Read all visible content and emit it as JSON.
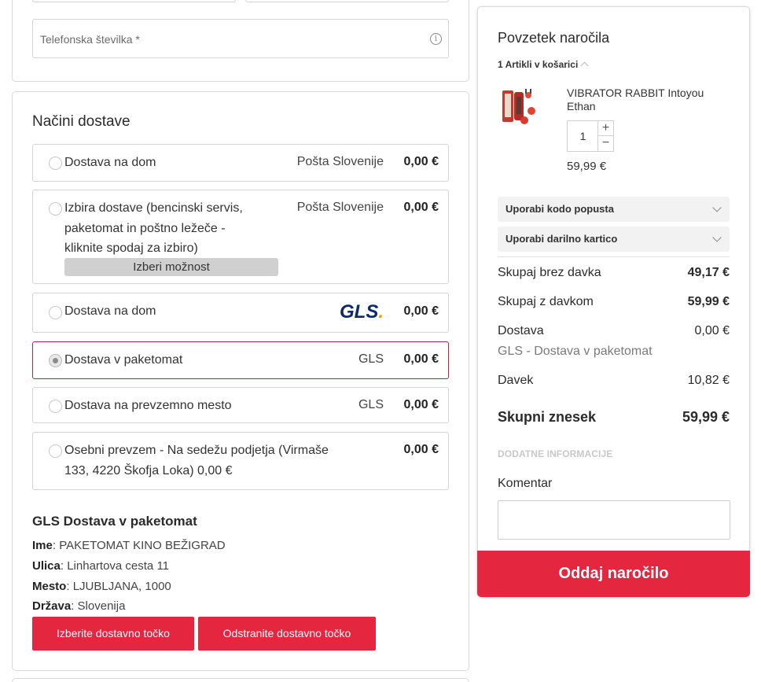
{
  "contact": {
    "phone_placeholder": "Telefonska številka *"
  },
  "delivery": {
    "title": "Načini dostave",
    "options": [
      {
        "label": "Dostava na dom",
        "carrier": "Pošta Slovenije",
        "price": "0,00 €",
        "selected": false
      },
      {
        "label_lines": [
          "Izbira dostave (bencinski servis,",
          "paketomat in poštno ležeče -",
          "kliknite spodaj za izbiro)"
        ],
        "carrier": "Pošta Slovenije",
        "price": "0,00 €",
        "button": "Izberi možnost",
        "selected": false
      },
      {
        "label": "Dostava na dom",
        "carrier_logo": "GLS",
        "price": "0,00 €",
        "selected": false
      },
      {
        "label": "Dostava v paketomat",
        "carrier": "GLS",
        "price": "0,00 €",
        "selected": true
      },
      {
        "label": "Dostava na prevzemno mesto",
        "carrier": "GLS",
        "price": "0,00 €",
        "selected": false
      },
      {
        "label_lines": [
          "Osebni prevzem - Na sedežu podjetja (Virmaše",
          "133, 4220 Škofja Loka) 0,00 €"
        ],
        "price": "0,00 €",
        "selected": false
      }
    ],
    "pickup": {
      "title": "GLS Dostava v paketomat",
      "name_label": "Ime",
      "name": "PAKETOMAT KINO BEŽIGRAD",
      "street_label": "Ulica",
      "street": "Linhartova cesta 11",
      "city_label": "Mesto",
      "city": "LJUBLJANA, 1000",
      "country_label": "Država",
      "country": "Slovenija",
      "select_button": "Izberite dostavno točko",
      "remove_button": "Odstranite dostavno točko"
    }
  },
  "summary": {
    "title": "Povzetek naročila",
    "items_count": "1 Artikli v košarici",
    "product": {
      "name": "VIBRATOR RABBIT Intoyou Ethan",
      "quantity": "1",
      "price": "59,99 €"
    },
    "coupon_label": "Uporabi kodo popusta",
    "giftcard_label": "Uporabi darilno kartico",
    "subtotal_net_label": "Skupaj brez davka",
    "subtotal_net": "49,17 €",
    "subtotal_gross_label": "Skupaj z davkom",
    "subtotal_gross": "59,99 €",
    "shipping_label": "Dostava",
    "shipping_value": "0,00 €",
    "shipping_method": "GLS - Dostava v paketomat",
    "tax_label": "Davek",
    "tax_value": "10,82 €",
    "total_label": "Skupni znesek",
    "total_value": "59,99 €",
    "extra_info": "DODATNE INFORMACIJE",
    "comment_label": "Komentar",
    "submit": "Oddaj naročilo"
  },
  "colors": {
    "accent_red": "#e4263e",
    "selected_border": "#b3263b",
    "gls_blue": "#0a2a6e",
    "gls_dot": "#f5a000"
  }
}
